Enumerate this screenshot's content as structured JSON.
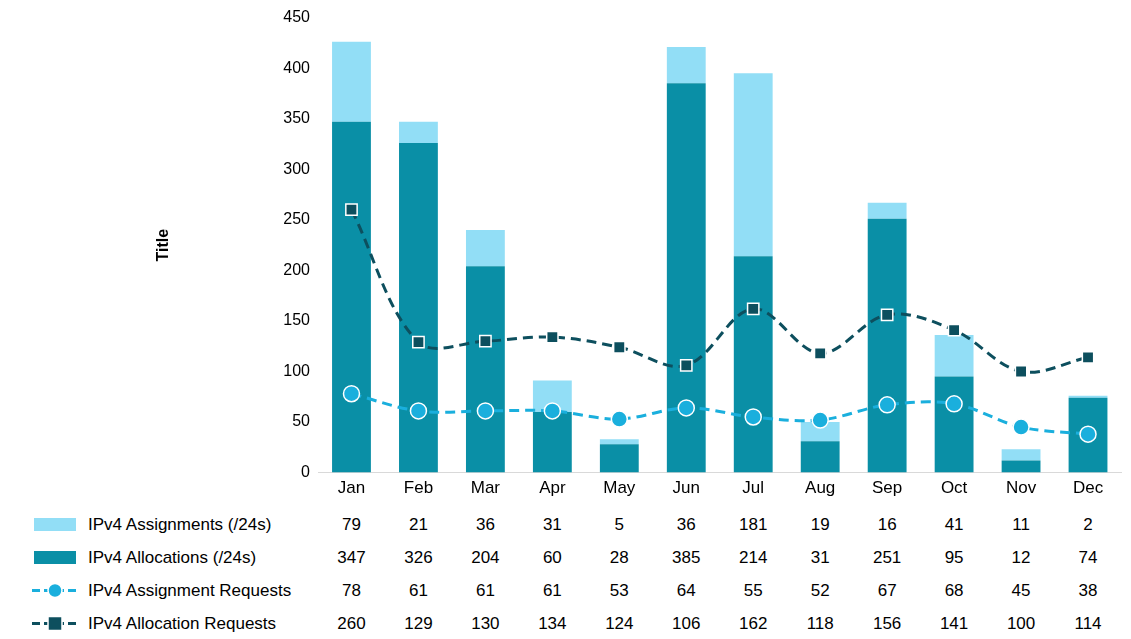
{
  "chart_data": {
    "type": "bar",
    "categories": [
      "Jan",
      "Feb",
      "Mar",
      "Apr",
      "May",
      "Jun",
      "Jul",
      "Aug",
      "Sep",
      "Oct",
      "Nov",
      "Dec"
    ],
    "ylabel": "Title",
    "ylim": [
      0,
      450
    ],
    "yticks": [
      0,
      50,
      100,
      150,
      200,
      250,
      300,
      350,
      400,
      450
    ],
    "grid": false,
    "stacked": true,
    "series": [
      {
        "name": "IPv4 Assignments (/24s)",
        "type": "bar",
        "color": "#92DEF6",
        "values": [
          79,
          21,
          36,
          31,
          5,
          36,
          181,
          19,
          16,
          41,
          11,
          2
        ]
      },
      {
        "name": "IPv4 Allocations (/24s)",
        "type": "bar",
        "color": "#0A8FA6",
        "values": [
          347,
          326,
          204,
          60,
          28,
          385,
          214,
          31,
          251,
          95,
          12,
          74
        ]
      },
      {
        "name": "IPv4 Assignment Requests",
        "type": "line",
        "color": "#1AAFDD",
        "marker": "circle",
        "line_style": "dashed",
        "values": [
          78,
          61,
          61,
          61,
          53,
          64,
          55,
          52,
          67,
          68,
          45,
          38
        ]
      },
      {
        "name": "IPv4 Allocation Requests",
        "type": "line",
        "color": "#0D4F5E",
        "marker": "square",
        "line_style": "dashed",
        "values": [
          260,
          129,
          130,
          134,
          124,
          106,
          162,
          118,
          156,
          141,
          100,
          114
        ]
      }
    ]
  }
}
